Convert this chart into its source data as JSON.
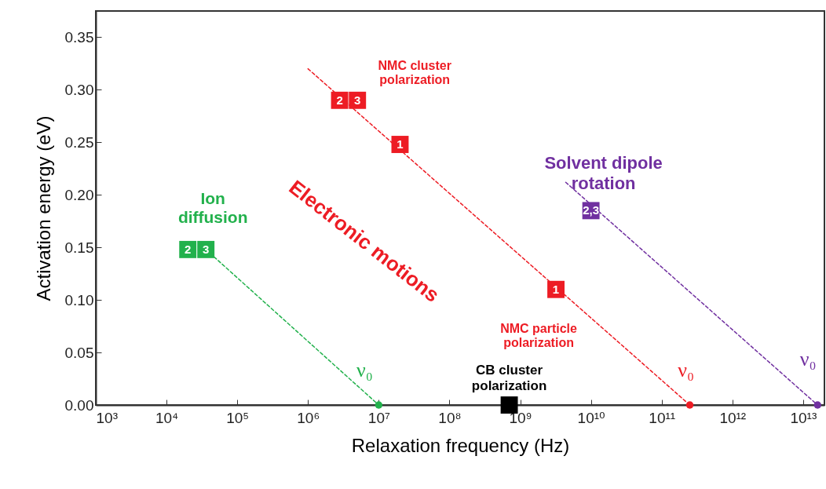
{
  "chart_data": {
    "type": "scatter",
    "xlabel": "Relaxation frequency (Hz)",
    "ylabel": "Activation energy (eV)",
    "log": "x",
    "xlim": [
      1000,
      20000000000000
    ],
    "ylim": [
      0,
      0.375
    ],
    "xticks": [
      {
        "value": 1000,
        "label": "10³"
      },
      {
        "value": 10000,
        "label": "10⁴"
      },
      {
        "value": 100000,
        "label": "10⁵"
      },
      {
        "value": 1000000,
        "label": "10⁶"
      },
      {
        "value": 10000000,
        "label": "10⁷"
      },
      {
        "value": 100000000,
        "label": "10⁸"
      },
      {
        "value": 1000000000,
        "label": "10⁹"
      },
      {
        "value": 10000000000,
        "label": "10¹⁰"
      },
      {
        "value": 100000000000,
        "label": "10¹¹"
      },
      {
        "value": 1000000000000,
        "label": "10¹²"
      },
      {
        "value": 10000000000000,
        "label": "10¹³"
      }
    ],
    "yticks": [
      {
        "value": 0,
        "label": "0.00"
      },
      {
        "value": 0.05,
        "label": "0.05"
      },
      {
        "value": 0.1,
        "label": "0.10"
      },
      {
        "value": 0.15,
        "label": "0.15"
      },
      {
        "value": 0.2,
        "label": "0.20"
      },
      {
        "value": 0.25,
        "label": "0.25"
      },
      {
        "value": 0.3,
        "label": "0.30"
      },
      {
        "value": 0.35,
        "label": "0.35"
      }
    ],
    "series": [
      {
        "type": "line",
        "line_style": "dashed",
        "marker": "none",
        "color": "#22b14c",
        "x": [
          36000,
          10000000
        ],
        "values": [
          0.148,
          0
        ]
      },
      {
        "type": "scatter",
        "marker": "square",
        "color": "#22b14c",
        "x": [
          20000,
          36000
        ],
        "values": [
          0.148,
          0.148
        ]
      },
      {
        "type": "scatter",
        "marker": "circle",
        "color": "#22b14c",
        "x": [
          10000000
        ],
        "values": [
          0
        ]
      },
      {
        "type": "line",
        "line_style": "dashed",
        "marker": "none",
        "color": "#ed1c24",
        "x": [
          1000000,
          250000000000
        ],
        "values": [
          0.32,
          0
        ]
      },
      {
        "type": "scatter",
        "marker": "square",
        "color": "#ed1c24",
        "x": [
          2800000,
          5000000,
          20000000,
          3200000000
        ],
        "values": [
          0.29,
          0.29,
          0.248,
          0.11
        ]
      },
      {
        "type": "scatter",
        "marker": "circle",
        "color": "#ed1c24",
        "x": [
          250000000000
        ],
        "values": [
          0
        ]
      },
      {
        "type": "line",
        "line_style": "dashed",
        "marker": "none",
        "color": "#7030a0",
        "x": [
          4400000000,
          16000000000000
        ],
        "values": [
          0.212,
          0
        ]
      },
      {
        "type": "scatter",
        "marker": "square",
        "color": "#7030a0",
        "x": [
          10000000000
        ],
        "values": [
          0.185
        ]
      },
      {
        "type": "scatter",
        "marker": "circle",
        "color": "#7030a0",
        "x": [
          16000000000000
        ],
        "values": [
          0
        ]
      },
      {
        "type": "scatter",
        "marker": "square",
        "color": "#000000",
        "x": [
          700000000
        ],
        "values": [
          0
        ]
      }
    ],
    "annotations": [
      {
        "text": "Ion\ndiffusion",
        "x": 20000,
        "y": 0.148
      },
      {
        "text": "NMC cluster\npolarization",
        "x": 5000000,
        "y": 0.29
      },
      {
        "text": "Electronic motions",
        "x": 20000000,
        "y": 0.248
      },
      {
        "text": "Solvent dipole\nrotation",
        "x": 10000000000,
        "y": 0.185
      },
      {
        "text": "NMC particle\npolarization",
        "x": 3200000000,
        "y": 0.11
      },
      {
        "text": "CB cluster\npolarization",
        "x": 700000000,
        "y": 0
      },
      {
        "text": "ν₀",
        "x": 10000000,
        "y": 0
      },
      {
        "text": "ν₀",
        "x": 250000000000,
        "y": 0
      },
      {
        "text": "ν₀",
        "x": 16000000000000,
        "y": 0
      },
      {
        "text": "2",
        "x": 20000,
        "y": 0.148
      },
      {
        "text": "3",
        "x": 36000,
        "y": 0.148
      },
      {
        "text": "2",
        "x": 2800000,
        "y": 0.29
      },
      {
        "text": "3",
        "x": 5000000,
        "y": 0.29
      },
      {
        "text": "1",
        "x": 20000000,
        "y": 0.248
      },
      {
        "text": "1",
        "x": 3200000000,
        "y": 0.11
      },
      {
        "text": "2,3",
        "x": 10000000000,
        "y": 0.185
      }
    ]
  }
}
